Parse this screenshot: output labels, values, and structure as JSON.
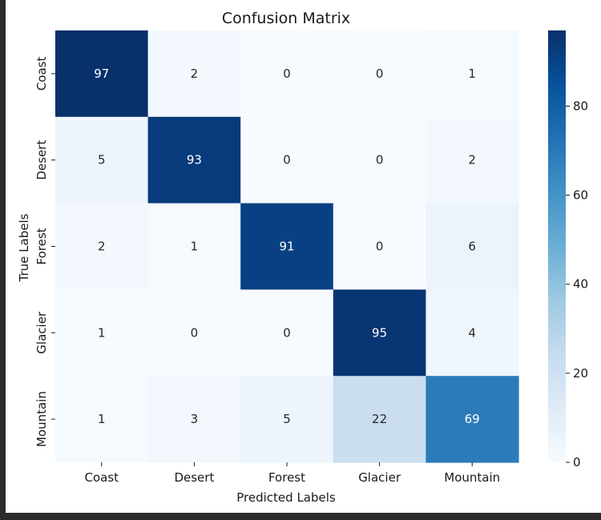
{
  "chart_data": {
    "type": "heatmap",
    "title": "Confusion Matrix",
    "xlabel": "Predicted Labels",
    "ylabel": "True Labels",
    "x_categories": [
      "Coast",
      "Desert",
      "Forest",
      "Glacier",
      "Mountain"
    ],
    "y_categories": [
      "Coast",
      "Desert",
      "Forest",
      "Glacier",
      "Mountain"
    ],
    "values": [
      [
        97,
        2,
        0,
        0,
        1
      ],
      [
        5,
        93,
        0,
        0,
        2
      ],
      [
        2,
        1,
        91,
        0,
        6
      ],
      [
        1,
        0,
        0,
        95,
        4
      ],
      [
        1,
        3,
        5,
        22,
        69
      ]
    ],
    "colormap": "Blues",
    "value_range": [
      0,
      97
    ],
    "colorbar_ticks": [
      0,
      20,
      40,
      60,
      80
    ],
    "grid": false,
    "legend": "colorbar-right"
  }
}
